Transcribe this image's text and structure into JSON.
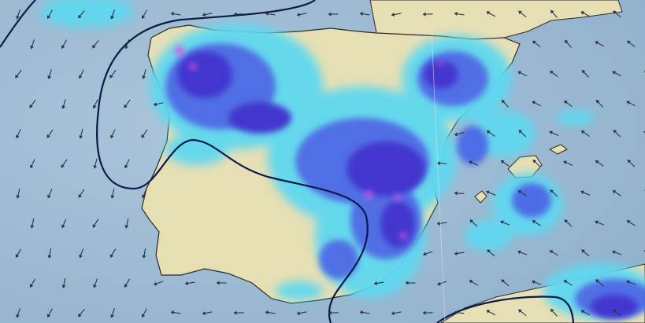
{
  "map": {
    "colors": {
      "sea": "#a3bfd6",
      "land": "#e6dfb4",
      "coast": "#2a2a2a",
      "precip_light": "#5fd8f0",
      "precip_medium": "#4a6be8",
      "precip_heavy": "#3a2fd0",
      "precip_extreme": "#e050e8",
      "isobar": "#0d1a4a",
      "wind_arrow": "#2b3444"
    },
    "layers": [
      "precipitation",
      "isobars",
      "wind-arrows",
      "coastlines"
    ]
  }
}
